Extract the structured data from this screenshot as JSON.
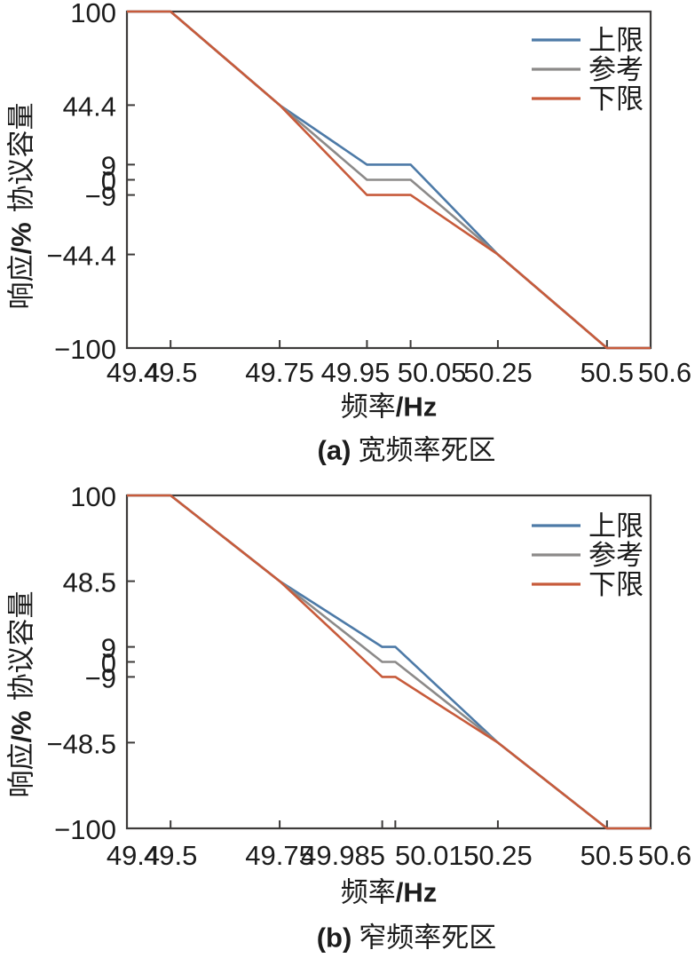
{
  "figure": {
    "background": "#ffffff",
    "axis_color": "#3d3b3a",
    "text_color": "#1c1c1c"
  },
  "chart_data": [
    {
      "type": "line",
      "caption": {
        "prefix": "(a)",
        "text": "宽频率死区"
      },
      "xlabel": {
        "text": "频率",
        "unit": "/Hz"
      },
      "ylabel": {
        "lead": "响应",
        "unit": "/%",
        "tail": "协议容量"
      },
      "xlim": [
        49.4,
        50.6
      ],
      "ylim": [
        -100,
        100
      ],
      "grid": false,
      "legend": {
        "position": "top-right"
      },
      "x_ticks": [
        {
          "v": 49.4,
          "label": "49.4"
        },
        {
          "v": 49.5,
          "label": "49.5"
        },
        {
          "v": 49.75,
          "label": "49.75"
        },
        {
          "v": 49.95,
          "label": "49.95"
        },
        {
          "v": 50.05,
          "label": "50.05"
        },
        {
          "v": 50.25,
          "label": "50.25"
        },
        {
          "v": 50.5,
          "label": "50.5"
        },
        {
          "v": 50.6,
          "label": "50.6"
        }
      ],
      "y_ticks": [
        {
          "v": 100,
          "label": "100"
        },
        {
          "v": 44.4,
          "label": "44.4"
        },
        {
          "v": 9,
          "label": "9"
        },
        {
          "v": 0,
          "label": "0"
        },
        {
          "v": -9,
          "label": "−9"
        },
        {
          "v": -44.4,
          "label": "−44.4"
        },
        {
          "v": -100,
          "label": "−100"
        }
      ],
      "series": [
        {
          "name": "上限",
          "color": "#4d7aa7",
          "points": [
            [
              49.4,
              100
            ],
            [
              49.5,
              100
            ],
            [
              49.75,
              44.4
            ],
            [
              49.95,
              9
            ],
            [
              50.05,
              9
            ],
            [
              50.25,
              -44.4
            ],
            [
              50.5,
              -100
            ],
            [
              50.6,
              -100
            ]
          ]
        },
        {
          "name": "参考",
          "color": "#8c8a89",
          "points": [
            [
              49.4,
              100
            ],
            [
              49.5,
              100
            ],
            [
              49.75,
              44.4
            ],
            [
              49.95,
              0
            ],
            [
              50.05,
              0
            ],
            [
              50.25,
              -44.4
            ],
            [
              50.5,
              -100
            ],
            [
              50.6,
              -100
            ]
          ]
        },
        {
          "name": "下限",
          "color": "#c75b3b",
          "points": [
            [
              49.4,
              100
            ],
            [
              49.5,
              100
            ],
            [
              49.75,
              44.4
            ],
            [
              49.95,
              -9
            ],
            [
              50.05,
              -9
            ],
            [
              50.25,
              -44.4
            ],
            [
              50.5,
              -100
            ],
            [
              50.6,
              -100
            ]
          ]
        }
      ]
    },
    {
      "type": "line",
      "caption": {
        "prefix": "(b)",
        "text": "窄频率死区"
      },
      "xlabel": {
        "text": "频率",
        "unit": "/Hz"
      },
      "ylabel": {
        "lead": "响应",
        "unit": "/%",
        "tail": "协议容量"
      },
      "xlim": [
        49.4,
        50.6
      ],
      "ylim": [
        -100,
        100
      ],
      "grid": false,
      "legend": {
        "position": "top-right"
      },
      "x_ticks": [
        {
          "v": 49.4,
          "label": "49.4"
        },
        {
          "v": 49.5,
          "label": "49.5"
        },
        {
          "v": 49.75,
          "label": "49.75"
        },
        {
          "v": 49.985,
          "label": "49.985"
        },
        {
          "v": 50.015,
          "label": "50.015"
        },
        {
          "v": 50.25,
          "label": "50.25"
        },
        {
          "v": 50.5,
          "label": "50.5"
        },
        {
          "v": 50.6,
          "label": "50.6"
        }
      ],
      "y_ticks": [
        {
          "v": 100,
          "label": "100"
        },
        {
          "v": 48.5,
          "label": "48.5"
        },
        {
          "v": 9,
          "label": "9"
        },
        {
          "v": 0,
          "label": "0"
        },
        {
          "v": -9,
          "label": "−9"
        },
        {
          "v": -48.5,
          "label": "−48.5"
        },
        {
          "v": -100,
          "label": "−100"
        }
      ],
      "series": [
        {
          "name": "上限",
          "color": "#4d7aa7",
          "points": [
            [
              49.4,
              100
            ],
            [
              49.5,
              100
            ],
            [
              49.75,
              48.5
            ],
            [
              49.985,
              9
            ],
            [
              50.015,
              9
            ],
            [
              50.25,
              -48.5
            ],
            [
              50.5,
              -100
            ],
            [
              50.6,
              -100
            ]
          ]
        },
        {
          "name": "参考",
          "color": "#8c8a89",
          "points": [
            [
              49.4,
              100
            ],
            [
              49.5,
              100
            ],
            [
              49.75,
              48.5
            ],
            [
              49.985,
              0
            ],
            [
              50.015,
              0
            ],
            [
              50.25,
              -48.5
            ],
            [
              50.5,
              -100
            ],
            [
              50.6,
              -100
            ]
          ]
        },
        {
          "name": "下限",
          "color": "#c75b3b",
          "points": [
            [
              49.4,
              100
            ],
            [
              49.5,
              100
            ],
            [
              49.75,
              48.5
            ],
            [
              49.985,
              -9
            ],
            [
              50.015,
              -9
            ],
            [
              50.25,
              -48.5
            ],
            [
              50.5,
              -100
            ],
            [
              50.6,
              -100
            ]
          ]
        }
      ]
    }
  ]
}
